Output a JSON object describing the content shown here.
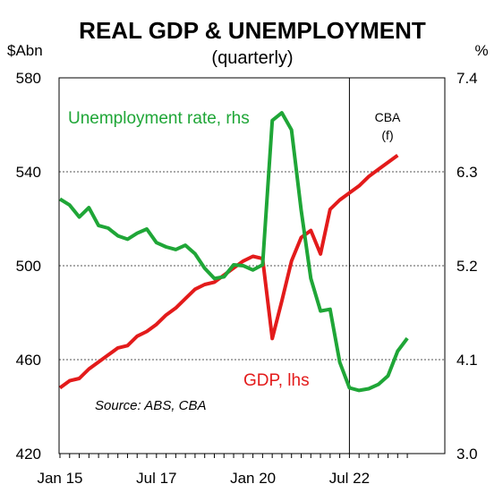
{
  "chart_data": {
    "type": "line",
    "title": "REAL GDP & UNEMPLOYMENT",
    "subtitle": "(quarterly)",
    "left_axis": {
      "unit": "$Abn",
      "ylim": [
        420,
        580
      ],
      "ticks": [
        "580",
        "540",
        "500",
        "460",
        "420"
      ]
    },
    "right_axis": {
      "unit": "%",
      "ylim": [
        3.0,
        7.4
      ],
      "ticks": [
        "7.4",
        "6.3",
        "5.2",
        "4.1",
        "3.0"
      ]
    },
    "x_tick_labels": [
      "Jan 15",
      "Jul 17",
      "Jan 20",
      "Jul 22"
    ],
    "x": [
      "Jan 15",
      "Apr 15",
      "Jul 15",
      "Oct 15",
      "Jan 16",
      "Apr 16",
      "Jul 16",
      "Oct 16",
      "Jan 17",
      "Apr 17",
      "Jul 17",
      "Oct 17",
      "Jan 18",
      "Apr 18",
      "Jul 18",
      "Oct 18",
      "Jan 19",
      "Apr 19",
      "Jul 19",
      "Oct 19",
      "Jan 20",
      "Apr 20",
      "Jul 20",
      "Oct 20",
      "Jan 21",
      "Apr 21",
      "Jul 21",
      "Oct 21",
      "Jan 22",
      "Apr 22",
      "Jul 22",
      "Oct 22",
      "Jan 23",
      "Apr 23",
      "Jul 23",
      "Oct 23",
      "Jan 24"
    ],
    "forecast": {
      "start": "Jul 22",
      "label_line1": "CBA",
      "label_line2": "(f)"
    },
    "grid": true,
    "series": [
      {
        "name": "GDP, lhs",
        "axis": "left",
        "color": "#e31b1b",
        "values": [
          448,
          451,
          452,
          456,
          459,
          462,
          465,
          466,
          470,
          472,
          475,
          479,
          482,
          486,
          490,
          492,
          493,
          496,
          499,
          502,
          504,
          503,
          469,
          485,
          502,
          512,
          515,
          505,
          524,
          528,
          531,
          534,
          538,
          541,
          544,
          547,
          null
        ]
      },
      {
        "name": "Unemployment rate, rhs",
        "axis": "right",
        "color": "#1fa637",
        "values": [
          5.98,
          5.91,
          5.77,
          5.88,
          5.67,
          5.64,
          5.55,
          5.51,
          5.58,
          5.63,
          5.47,
          5.42,
          5.39,
          5.44,
          5.34,
          5.17,
          5.05,
          5.07,
          5.21,
          5.2,
          5.15,
          5.21,
          6.9,
          6.99,
          6.79,
          5.85,
          5.05,
          4.67,
          4.69,
          4.07,
          3.77,
          3.74,
          3.76,
          3.81,
          3.91,
          4.2,
          4.35
        ]
      }
    ],
    "source": "Source: ABS, CBA"
  }
}
